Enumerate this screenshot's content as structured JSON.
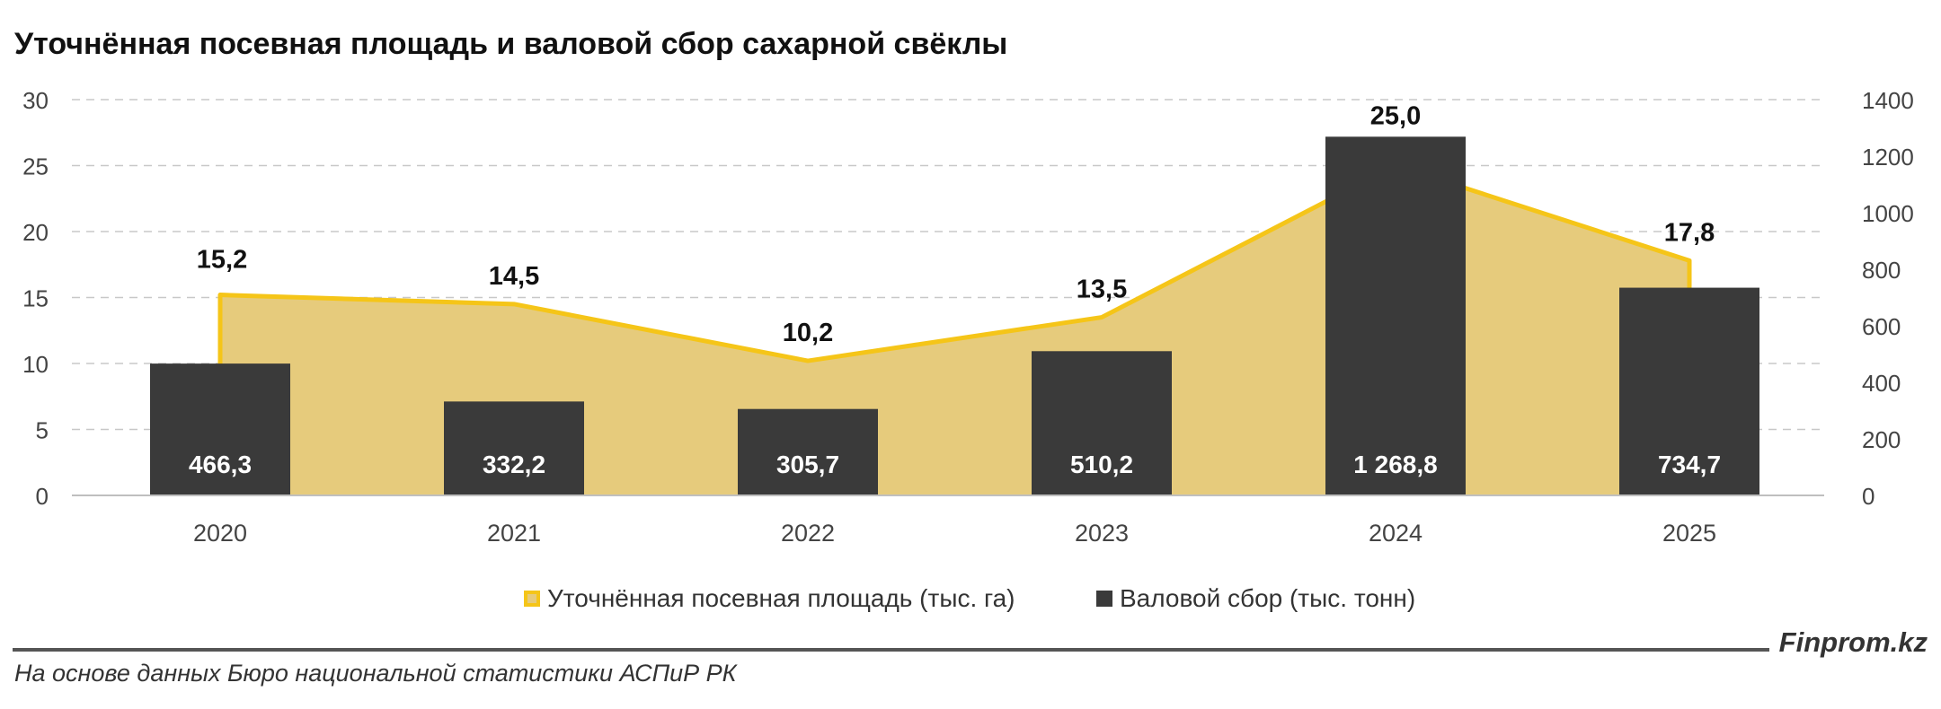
{
  "title": "Уточнённая посевная площадь и валовой сбор сахарной свёклы",
  "source_note": "На основе данных Бюро национальной статистики АСПиР РК",
  "brand": "Finprom.kz",
  "colors": {
    "area_fill": "#E6CB7C",
    "area_line": "#F5C518",
    "bar": "#3a3a3a",
    "grid": "#c8c8c8",
    "axis_text": "#444444"
  },
  "chart_data": {
    "type": "bar",
    "categories": [
      "2020",
      "2021",
      "2022",
      "2023",
      "2024",
      "2025"
    ],
    "series": [
      {
        "name": "Уточнённая посевная площадь (тыс. га)",
        "type": "area",
        "axis": "left",
        "values": [
          15.2,
          14.5,
          10.2,
          13.5,
          25.0,
          17.8
        ],
        "labels": [
          "15,2",
          "14,5",
          "10,2",
          "13,5",
          "25,0",
          "17,8"
        ]
      },
      {
        "name": "Валовой сбор (тыс. тонн)",
        "type": "bar",
        "axis": "right",
        "values": [
          466.3,
          332.2,
          305.7,
          510.2,
          1268.8,
          734.7
        ],
        "labels": [
          "466,3",
          "332,2",
          "305,7",
          "510,2",
          "1 268,8",
          "734,7"
        ]
      }
    ],
    "y_left": {
      "min": 0,
      "max": 30,
      "ticks": [
        "0",
        "5",
        "10",
        "15",
        "20",
        "25",
        "30"
      ]
    },
    "y_right": {
      "min": 0,
      "max": 1400,
      "ticks": [
        "0",
        "200",
        "400",
        "600",
        "800",
        "1000",
        "1200",
        "1400"
      ]
    },
    "grid": true,
    "legend_position": "bottom"
  }
}
